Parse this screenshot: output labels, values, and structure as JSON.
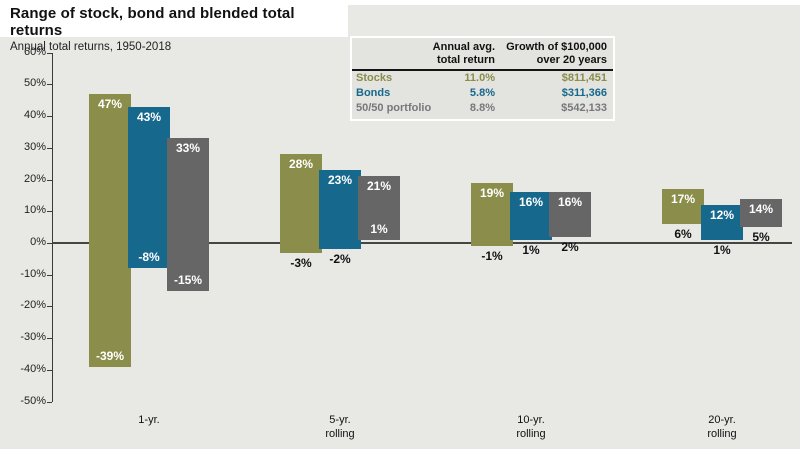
{
  "chart_data": {
    "type": "bar",
    "subtype": "floating-range-bars",
    "title": "Range of stock, bond and blended total returns",
    "subtitle": "Annual total returns, 1950-2018",
    "categories": [
      "1-yr.",
      "5-yr.\nrolling",
      "10-yr.\nrolling",
      "20-yr.\nrolling"
    ],
    "series": [
      {
        "name": "Stocks",
        "color": "#8b8d4a",
        "max": [
          47,
          28,
          19,
          17
        ],
        "min": [
          -39,
          -3,
          -1,
          6
        ],
        "min_label_placement": [
          "inside",
          "below",
          "below",
          "below"
        ]
      },
      {
        "name": "Bonds",
        "color": "#16688c",
        "max": [
          43,
          23,
          16,
          12
        ],
        "min": [
          -8,
          -2,
          1,
          1
        ],
        "min_label_placement": [
          "inside",
          "below",
          "below",
          "below"
        ]
      },
      {
        "name": "50/50 portfolio",
        "color": "#666666",
        "max": [
          33,
          21,
          16,
          14
        ],
        "min": [
          -15,
          1,
          2,
          5
        ],
        "min_label_placement": [
          "inside",
          "inside",
          "below",
          "below"
        ]
      }
    ],
    "value_unit": "%",
    "ylim": [
      -50,
      60
    ],
    "ytick_step": 10,
    "yticklabels": [
      "60%",
      "50%",
      "40%",
      "30%",
      "20%",
      "10%",
      "0%",
      "-10%",
      "-20%",
      "-30%",
      "-40%",
      "-50%"
    ],
    "zero_line": true,
    "grid": false,
    "legend_position": "none (series identified by color in summary table)",
    "plot_background": "#e8e8e5"
  },
  "table": {
    "header": {
      "col2_line1": "Annual avg.",
      "col2_line2": "total return",
      "col3_line1": "Growth of $100,000",
      "col3_line2": "over 20 years"
    },
    "rows": [
      {
        "label": "Stocks",
        "avg": "11.0%",
        "growth": "$811,451",
        "color": "#8b8d4a"
      },
      {
        "label": "Bonds",
        "avg": "5.8%",
        "growth": "$311,366",
        "color": "#16688c"
      },
      {
        "label": "50/50 portfolio",
        "avg": "8.8%",
        "growth": "$542,133",
        "color": "#77787a"
      }
    ]
  }
}
